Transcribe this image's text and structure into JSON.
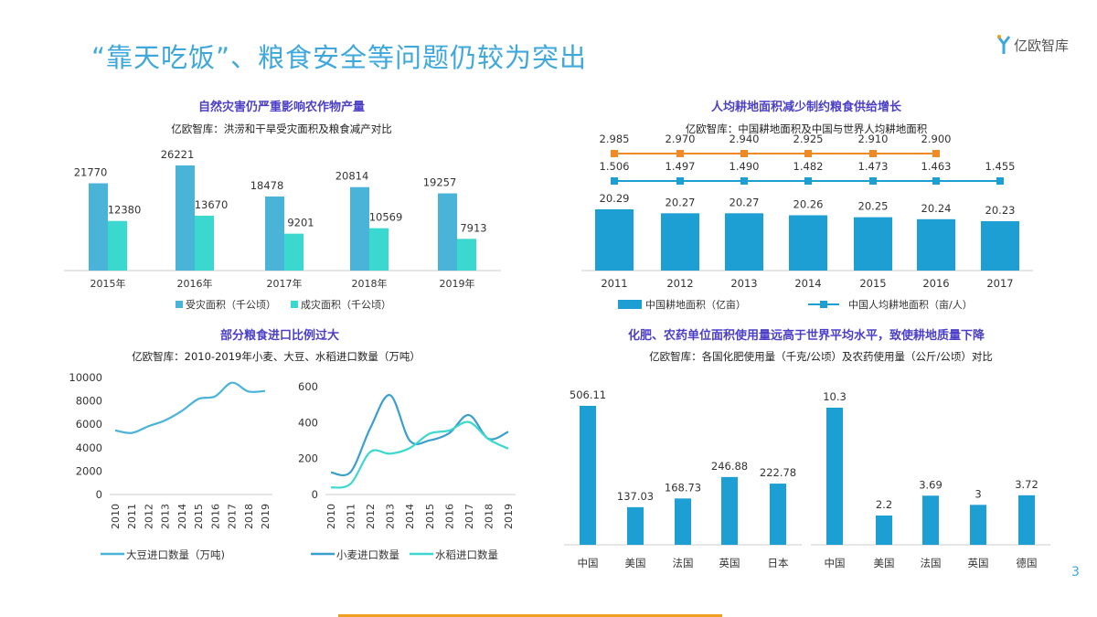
{
  "header": {
    "title": "“靠天吃饭”、粮食安全等问题仍较为突出",
    "logo_text": "亿欧智库"
  },
  "page_number": "3",
  "colors": {
    "blue": "#4ab3d8",
    "teal": "#3bd8cf",
    "dark_blue": "#1e9fd4",
    "orange": "#f08a24",
    "title_purple": "#4b3fc8",
    "heading_blue": "#3ea8dc"
  },
  "chart_data": [
    {
      "type": "bar",
      "title": "自然灾害仍严重影响农作物产量",
      "subtitle": "亿欧智库：洪涝和干旱受灾面积及粮食减产对比",
      "categories": [
        "2015年",
        "2016年",
        "2017年",
        "2018年",
        "2019年"
      ],
      "series": [
        {
          "name": "受灾面积（千公顷）",
          "values": [
            21770,
            26221,
            18478,
            20814,
            19257
          ],
          "color": "#4ab3d8"
        },
        {
          "name": "成灾面积（千公顷）",
          "values": [
            12380,
            13670,
            9201,
            10569,
            7913
          ],
          "color": "#3bd8cf"
        }
      ],
      "legend": "bottom"
    },
    {
      "type": "bar+line",
      "title": "人均耕地面积减少制约粮食供给增长",
      "subtitle": "亿欧智库：中国耕地面积及中国与世界人均耕地面积",
      "categories": [
        "2011",
        "2012",
        "2013",
        "2014",
        "2015",
        "2016",
        "2017"
      ],
      "series": [
        {
          "name": "中国耕地面积（亿亩）",
          "kind": "bar",
          "values": [
            20.29,
            20.27,
            20.27,
            20.26,
            20.25,
            20.24,
            20.23
          ],
          "color": "#1e9fd4"
        },
        {
          "name": "中国人均耕地面积（亩/人）",
          "kind": "line",
          "values": [
            1.506,
            1.497,
            1.49,
            1.482,
            1.473,
            1.463,
            1.455
          ],
          "color": "#1e9fd4"
        },
        {
          "kind": "line",
          "values": [
            2.985,
            2.97,
            2.94,
            2.925,
            2.91,
            2.9,
            null
          ],
          "color": "#f08a24"
        }
      ],
      "legend": "bottom"
    },
    {
      "type": "line",
      "group_title": "部分粮食进口比例过大",
      "group_subtitle": "亿欧智库：2010-2019年小麦、大豆、水稻进口数量（万吨）",
      "x": [
        "2010",
        "2011",
        "2012",
        "2013",
        "2014",
        "2015",
        "2016",
        "2017",
        "2018",
        "2019"
      ],
      "ylim": [
        0,
        10000
      ],
      "yticks": [
        "0",
        "2000",
        "4000",
        "6000",
        "8000",
        "10000"
      ],
      "series": [
        {
          "name": "大豆进口数量（万吨)",
          "values": [
            5480,
            5264,
            5838,
            6338,
            7140,
            8169,
            8391,
            9553,
            8803,
            8851
          ],
          "color": "#4ab3d8"
        }
      ],
      "legend": "bottom"
    },
    {
      "type": "line",
      "x": [
        "2010",
        "2011",
        "2012",
        "2013",
        "2014",
        "2015",
        "2016",
        "2017",
        "2018",
        "2019"
      ],
      "ylim": [
        0,
        600
      ],
      "yticks": [
        "0",
        "200",
        "400",
        "600"
      ],
      "series": [
        {
          "name": "小麦进口数量",
          "values": [
            123,
            126,
            370,
            553,
            300,
            301,
            341,
            442,
            310,
            349
          ],
          "color": "#3a9fcc"
        },
        {
          "name": "水稻进口数量",
          "values": [
            39,
            60,
            237,
            227,
            258,
            338,
            356,
            403,
            308,
            255
          ],
          "color": "#3bd8cf"
        }
      ],
      "legend": "bottom"
    },
    {
      "type": "bar",
      "group_title": "化肥、农药单位面积使用量远高于世界平均水平，致使耕地质量下降",
      "group_subtitle": "亿欧智库：各国化肥使用量（千克/公顷）及农药使用量（公斤/公顷）对比",
      "categories": [
        "中国",
        "美国",
        "法国",
        "英国",
        "日本"
      ],
      "values": [
        506.11,
        137.03,
        168.73,
        246.88,
        222.78
      ],
      "color": "#1e9fd4"
    },
    {
      "type": "bar",
      "categories": [
        "中国",
        "美国",
        "法国",
        "英国",
        "德国"
      ],
      "values": [
        10.3,
        2.2,
        3.69,
        3,
        3.72
      ],
      "color": "#1e9fd4"
    }
  ]
}
